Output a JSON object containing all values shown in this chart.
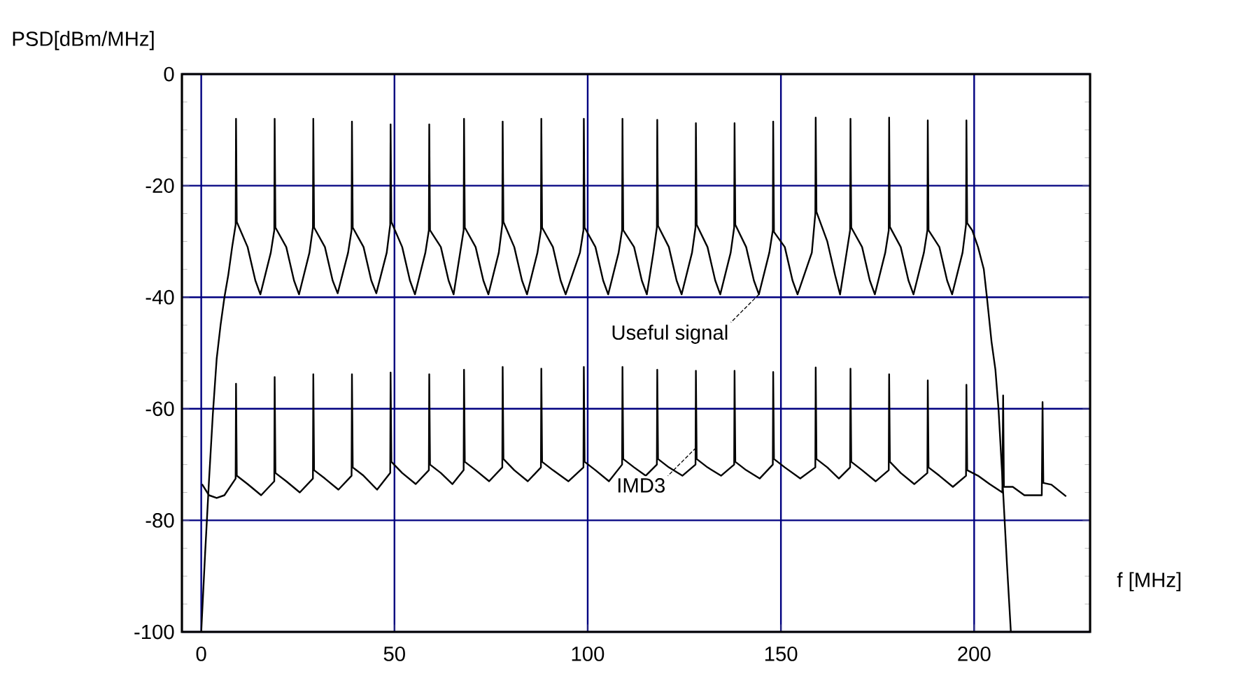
{
  "chart_data": {
    "type": "line",
    "xlabel": "f [MHz]",
    "ylabel": "PSD[dBm/MHz]",
    "xlim": [
      -5,
      230
    ],
    "ylim": [
      -100,
      0
    ],
    "xticks": [
      0,
      50,
      100,
      150,
      200
    ],
    "yticks": [
      -100,
      -80,
      -60,
      -40,
      -20,
      0
    ],
    "grid": true,
    "series": [
      {
        "color": "#000000",
        "x": [
          0,
          1,
          2,
          3,
          4,
          5,
          6,
          7,
          8,
          8.9,
          9,
          9.2,
          12,
          14,
          15.3,
          18,
          18.9,
          19,
          19.2,
          22,
          24,
          25.3,
          28,
          28.9,
          29,
          29.2,
          32,
          34,
          35.3,
          38,
          38.9,
          39,
          39.2,
          42,
          44,
          45.3,
          48,
          48.9,
          49,
          49.2,
          52,
          54,
          55.3,
          58,
          58.9,
          59,
          59.2,
          62,
          64,
          65.3,
          67,
          67.9,
          68,
          68.2,
          71,
          73,
          74.3,
          77,
          77.9,
          78,
          78.2,
          81,
          83,
          84.3,
          87,
          87.9,
          88,
          88.2,
          91,
          93,
          94.3,
          98,
          98.9,
          99,
          99.2,
          102,
          104,
          105.3,
          108,
          108.9,
          109,
          109.2,
          112,
          114,
          115.3,
          117,
          117.9,
          118,
          118.2,
          121,
          123,
          124.3,
          127,
          127.9,
          128,
          128.2,
          131,
          133,
          134.3,
          137,
          137.9,
          138,
          138.2,
          141,
          143,
          144.3,
          147,
          147.9,
          148,
          148.2,
          151,
          153,
          154.3,
          158,
          158.9,
          159,
          159.2,
          162,
          164,
          165.3,
          167,
          167.9,
          168,
          168.2,
          171,
          173,
          174.3,
          177,
          177.9,
          178,
          178.2,
          181,
          183,
          184.3,
          187,
          187.9,
          188,
          188.2,
          191,
          193,
          194.3,
          197,
          197.9,
          198,
          198.2,
          199.5,
          201,
          202.5,
          203.3,
          204.5,
          205.5,
          206.3,
          207.5,
          208.5,
          209.5
        ],
        "values": [
          -100,
          -86,
          -73,
          -61,
          -51,
          -45,
          -40,
          -36,
          -31,
          -27,
          -8,
          -26.5,
          -31,
          -37,
          -39.5,
          -32,
          -28,
          -8,
          -27.5,
          -31,
          -37,
          -39.5,
          -32,
          -27.5,
          -8,
          -27.5,
          -31,
          -37,
          -39.3,
          -32,
          -28,
          -8.5,
          -27.5,
          -31,
          -37,
          -39.3,
          -32,
          -27,
          -9,
          -26.5,
          -31,
          -37,
          -39.5,
          -32,
          -28,
          -9,
          -28,
          -31,
          -37,
          -39.5,
          -32,
          -28,
          -8,
          -27.5,
          -31,
          -37,
          -39.5,
          -32,
          -27,
          -8.5,
          -26.5,
          -31,
          -37,
          -39.5,
          -32,
          -28,
          -8,
          -27.5,
          -31,
          -37,
          -39.5,
          -32,
          -28,
          -8,
          -27.5,
          -31,
          -37,
          -39.5,
          -32,
          -28,
          -8,
          -28,
          -31,
          -37,
          -39.5,
          -32,
          -27.5,
          -8.2,
          -27.2,
          -31,
          -37,
          -39.5,
          -32,
          -27.5,
          -8.8,
          -27,
          -31,
          -37,
          -39.5,
          -32,
          -27.5,
          -8.8,
          -27,
          -31,
          -37,
          -39.5,
          -32,
          -28,
          -8.5,
          -28.3,
          -31,
          -37,
          -39.5,
          -32,
          -25,
          -7.8,
          -24.7,
          -30,
          -36,
          -39.5,
          -32,
          -28,
          -8,
          -27.5,
          -31,
          -37,
          -39.5,
          -32,
          -28,
          -7.8,
          -27.4,
          -31,
          -37,
          -39.5,
          -32,
          -28,
          -8.3,
          -28,
          -31,
          -37,
          -39.5,
          -32,
          -27,
          -8.3,
          -26.7,
          -28,
          -31,
          -35,
          -40,
          -48,
          -53,
          -60,
          -75,
          -88,
          -100
        ]
      },
      {
        "color": "#000000",
        "x": [
          0.2,
          2,
          4,
          6,
          8.9,
          9,
          9.2,
          12,
          15.5,
          18.9,
          19,
          19.2,
          22,
          25.5,
          28.9,
          29,
          29.2,
          32,
          35.5,
          38.9,
          39,
          39.2,
          42,
          45.5,
          48.9,
          49,
          49.2,
          52,
          55.5,
          58.9,
          59,
          59.2,
          62,
          65,
          67.9,
          68,
          68.2,
          71,
          74.5,
          77.9,
          78,
          78.2,
          81,
          84.5,
          87.9,
          88,
          88.2,
          91,
          95,
          98.9,
          99,
          99.2,
          102,
          105.5,
          108.9,
          109,
          109.2,
          112,
          115,
          117.9,
          118,
          118.2,
          121,
          124.5,
          127.9,
          128,
          128.2,
          131,
          134.5,
          137.9,
          138,
          138.2,
          141,
          144.5,
          147.9,
          148,
          148.2,
          151,
          155,
          158.9,
          159,
          159.2,
          162,
          165,
          167.9,
          168,
          168.2,
          171,
          174.5,
          177.9,
          178,
          178.2,
          181,
          184.5,
          187.9,
          188,
          188.2,
          191,
          194.5,
          197.9,
          198,
          198.2,
          201,
          204,
          207.3,
          207.5,
          207.7,
          210,
          213,
          217.5,
          217.7,
          217.9,
          220,
          223.8
        ],
        "values": [
          -73.5,
          -75.5,
          -76,
          -75.5,
          -72.5,
          -55.5,
          -72,
          -73.5,
          -75.5,
          -73,
          -54.3,
          -71.5,
          -73,
          -75,
          -72.5,
          -53.8,
          -71,
          -72.5,
          -74.5,
          -72,
          -53.8,
          -70.5,
          -72,
          -74.5,
          -71.5,
          -53.5,
          -69.5,
          -71.5,
          -73.5,
          -71,
          -53.8,
          -70,
          -71.5,
          -73.5,
          -71,
          -53,
          -69.5,
          -71,
          -73,
          -70.5,
          -52.5,
          -69,
          -71,
          -73,
          -70.5,
          -52.8,
          -69.5,
          -71,
          -73,
          -70.5,
          -52.5,
          -69.5,
          -71,
          -73,
          -70,
          -52.5,
          -69,
          -70.5,
          -72,
          -70,
          -53,
          -69,
          -70.5,
          -72,
          -70,
          -53.2,
          -69,
          -70.5,
          -72,
          -70,
          -53.2,
          -69.5,
          -71,
          -72.5,
          -70,
          -53.4,
          -69,
          -70.5,
          -72.5,
          -70.5,
          -52.6,
          -69,
          -70.5,
          -72.5,
          -70.5,
          -52.8,
          -69.5,
          -71,
          -73,
          -71,
          -53.8,
          -69.5,
          -71.5,
          -73.5,
          -71.5,
          -54.9,
          -70.5,
          -72,
          -74,
          -72,
          -55.7,
          -71,
          -72,
          -73.5,
          -75,
          -57.6,
          -74,
          -74,
          -75.5,
          -75.5,
          -58.8,
          -73.3,
          -73.6,
          -75.7
        ]
      }
    ],
    "annotations": [
      {
        "text": "Useful signal",
        "x": 144.3,
        "y": -39.5
      },
      {
        "text": "IMD3",
        "x": 128,
        "y": -67
      }
    ]
  }
}
